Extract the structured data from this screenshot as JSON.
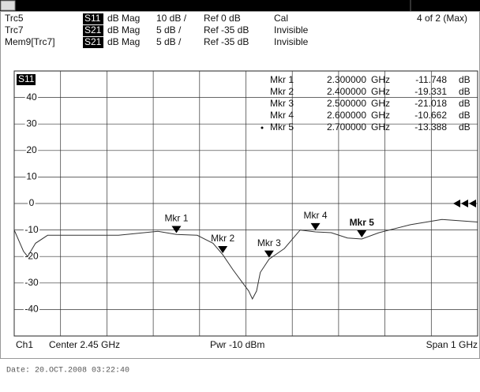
{
  "header": {
    "rows": [
      {
        "trace": "Trc5",
        "param": "S11",
        "format": "dB Mag",
        "scale": "10 dB /",
        "ref": "Ref 0 dB",
        "status": "Cal"
      },
      {
        "trace": "Trc7",
        "param": "S21",
        "format": "dB Mag",
        "scale": "5 dB /",
        "ref": "Ref -35 dB",
        "status": "Invisible"
      },
      {
        "trace": "Mem9[Trc7]",
        "param": "S21",
        "format": "dB Mag",
        "scale": "5 dB /",
        "ref": "Ref -35 dB",
        "status": "Invisible"
      }
    ],
    "count": "4 of 2 (Max)"
  },
  "chart_data": {
    "type": "line",
    "trace_label": "S11",
    "color": "#333333",
    "x": [
      1.95,
      1.97,
      1.979,
      1.996,
      2.022,
      2.09,
      2.175,
      2.26,
      2.3,
      2.345,
      2.379,
      2.4,
      2.422,
      2.439,
      2.456,
      2.464,
      2.473,
      2.481,
      2.5,
      2.533,
      2.567,
      2.6,
      2.634,
      2.669,
      2.7,
      2.737,
      2.805,
      2.873,
      2.95
    ],
    "values": [
      -10,
      -18,
      -20,
      -15,
      -12,
      -12,
      -12,
      -10.5,
      -11.7,
      -12,
      -15,
      -19.3,
      -25,
      -29,
      -33,
      -36,
      -33,
      -26,
      -21,
      -17,
      -10,
      -10.7,
      -11,
      -13,
      -13.4,
      -11,
      -8,
      -6,
      -7
    ],
    "xlim": [
      1.95,
      2.95
    ],
    "xticks": [
      1.95,
      2.05,
      2.15,
      2.25,
      2.35,
      2.45,
      2.55,
      2.65,
      2.75,
      2.85,
      2.95
    ],
    "ylim": [
      -50,
      50
    ],
    "yticks": [
      -40,
      -30,
      -20,
      -10,
      0,
      10,
      20,
      30,
      40
    ],
    "grid": true,
    "markers": [
      {
        "name": "Mkr 1",
        "x": 2.3,
        "x_label": "2.300000",
        "x_unit": "GHz",
        "value": -11.748,
        "value_label": "-11.748",
        "value_unit": "dB"
      },
      {
        "name": "Mkr 2",
        "x": 2.4,
        "x_label": "2.400000",
        "x_unit": "GHz",
        "value": -19.331,
        "value_label": "-19.331",
        "value_unit": "dB"
      },
      {
        "name": "Mkr 3",
        "x": 2.5,
        "x_label": "2.500000",
        "x_unit": "GHz",
        "value": -21.018,
        "value_label": "-21.018",
        "value_unit": "dB"
      },
      {
        "name": "Mkr 4",
        "x": 2.6,
        "x_label": "2.600000",
        "x_unit": "GHz",
        "value": -10.662,
        "value_label": "-10.662",
        "value_unit": "dB"
      },
      {
        "name": "Mkr 5",
        "x": 2.7,
        "x_label": "2.700000",
        "x_unit": "GHz",
        "value": -13.388,
        "value_label": "-13.388",
        "value_unit": "dB"
      }
    ]
  },
  "footer": {
    "channel": "Ch1",
    "center": "Center 2.45 GHz",
    "power": "Pwr -10 dBm",
    "span": "Span 1 GHz"
  },
  "date": "Date: 20.OCT.2008  03:22:40"
}
